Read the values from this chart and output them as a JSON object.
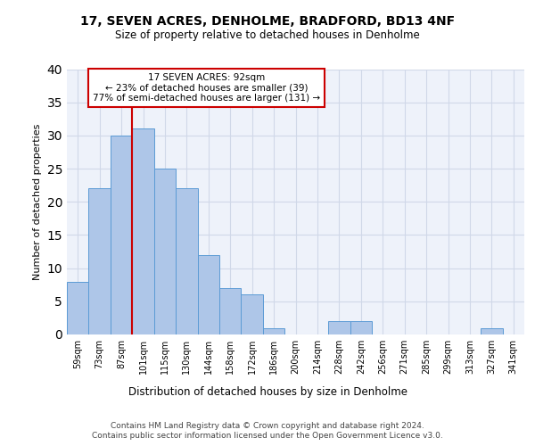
{
  "title1": "17, SEVEN ACRES, DENHOLME, BRADFORD, BD13 4NF",
  "title2": "Size of property relative to detached houses in Denholme",
  "xlabel": "Distribution of detached houses by size in Denholme",
  "ylabel": "Number of detached properties",
  "categories": [
    "59sqm",
    "73sqm",
    "87sqm",
    "101sqm",
    "115sqm",
    "130sqm",
    "144sqm",
    "158sqm",
    "172sqm",
    "186sqm",
    "200sqm",
    "214sqm",
    "228sqm",
    "242sqm",
    "256sqm",
    "271sqm",
    "285sqm",
    "299sqm",
    "313sqm",
    "327sqm",
    "341sqm"
  ],
  "values": [
    8,
    22,
    30,
    31,
    25,
    22,
    12,
    7,
    6,
    1,
    0,
    0,
    2,
    2,
    0,
    0,
    0,
    0,
    0,
    1,
    0
  ],
  "bar_color": "#aec6e8",
  "bar_edge_color": "#5b9bd5",
  "grid_color": "#d0d8e8",
  "background_color": "#eef2fa",
  "vline_x_idx": 2,
  "vline_color": "#cc0000",
  "annotation_lines": [
    "17 SEVEN ACRES: 92sqm",
    "← 23% of detached houses are smaller (39)",
    "77% of semi-detached houses are larger (131) →"
  ],
  "annotation_box_color": "#cc0000",
  "ylim": [
    0,
    40
  ],
  "yticks": [
    0,
    5,
    10,
    15,
    20,
    25,
    30,
    35,
    40
  ],
  "footer1": "Contains HM Land Registry data © Crown copyright and database right 2024.",
  "footer2": "Contains public sector information licensed under the Open Government Licence v3.0."
}
